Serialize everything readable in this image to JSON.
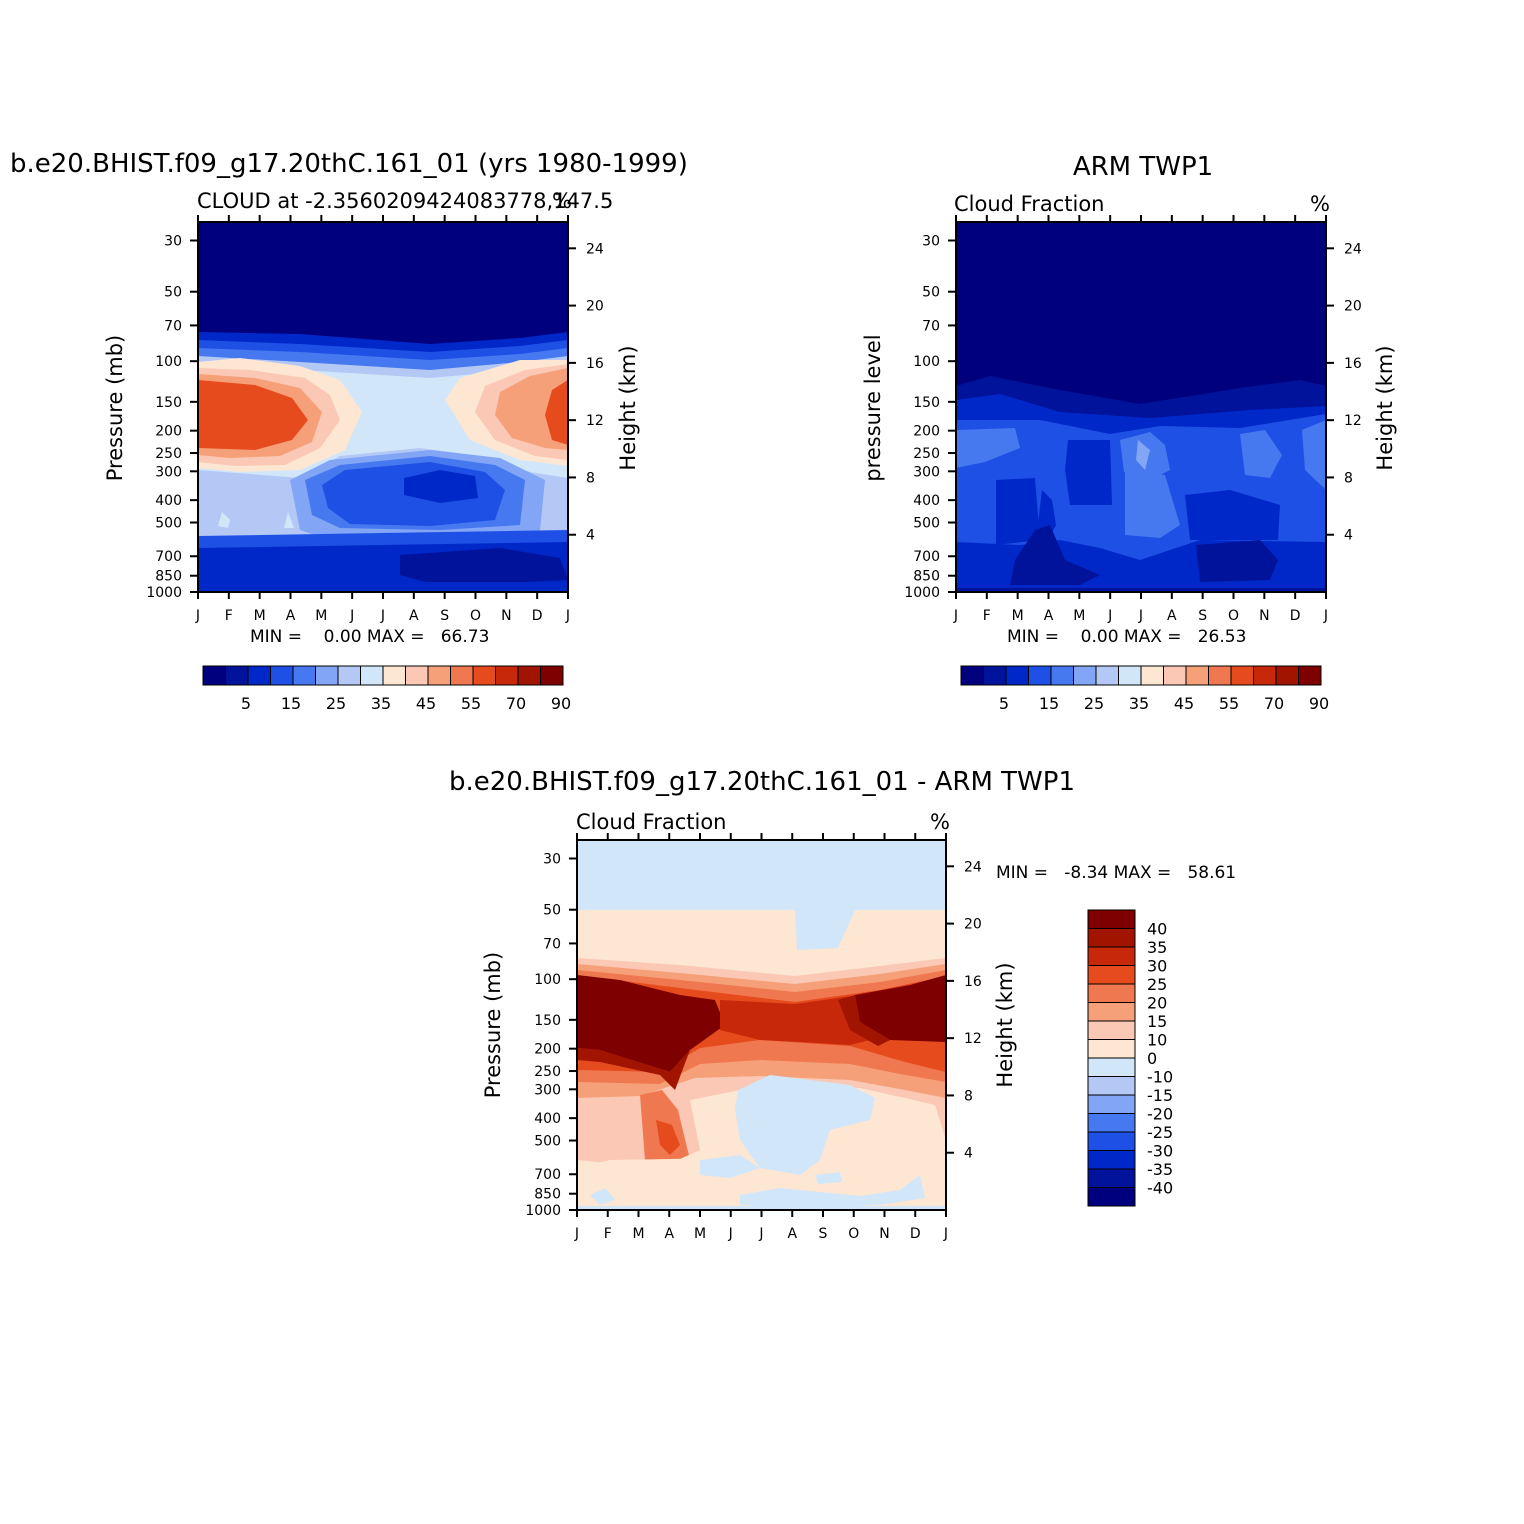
{
  "chart_data": [
    {
      "type": "heatmap",
      "title": "b.e20.BHIST.f09_g17.20thC.161_01 (yrs 1980-1999)",
      "subtitle_left": "CLOUD at -2.3560209424083778,147.5",
      "subtitle_right": "%",
      "ylabel": "Pressure (mb)",
      "ylabel_right": "Height (km)",
      "x_ticks": [
        "J",
        "F",
        "M",
        "A",
        "M",
        "J",
        "J",
        "A",
        "S",
        "O",
        "N",
        "D",
        "J"
      ],
      "y_ticks": [
        "30",
        "50",
        "70",
        "100",
        "150",
        "200",
        "250",
        "300",
        "400",
        "500",
        "700",
        "850",
        "1000"
      ],
      "y_ticks_right": [
        "24",
        "20",
        "16",
        "12",
        "8",
        "4"
      ],
      "stats": "MIN =    0.00 MAX =   66.73",
      "colorbar_labels": [
        "5",
        "15",
        "25",
        "35",
        "45",
        "55",
        "70",
        "90"
      ]
    },
    {
      "type": "heatmap",
      "title": "ARM TWP1",
      "subtitle_left": "Cloud Fraction",
      "subtitle_right": "%",
      "ylabel": "pressure level",
      "ylabel_right": "Height (km)",
      "x_ticks": [
        "J",
        "F",
        "M",
        "A",
        "M",
        "J",
        "J",
        "A",
        "S",
        "O",
        "N",
        "D",
        "J"
      ],
      "y_ticks": [
        "30",
        "50",
        "70",
        "100",
        "150",
        "200",
        "250",
        "300",
        "400",
        "500",
        "700",
        "850",
        "1000"
      ],
      "y_ticks_right": [
        "24",
        "20",
        "16",
        "12",
        "8",
        "4"
      ],
      "stats": "MIN =    0.00 MAX =   26.53",
      "colorbar_labels": [
        "5",
        "15",
        "25",
        "35",
        "45",
        "55",
        "70",
        "90"
      ]
    },
    {
      "type": "heatmap",
      "title": "b.e20.BHIST.f09_g17.20thC.161_01 - ARM TWP1",
      "subtitle_left": "Cloud Fraction",
      "subtitle_right": "%",
      "ylabel": "Pressure (mb)",
      "ylabel_right": "Height (km)",
      "x_ticks": [
        "J",
        "F",
        "M",
        "A",
        "M",
        "J",
        "J",
        "A",
        "S",
        "O",
        "N",
        "D",
        "J"
      ],
      "y_ticks": [
        "30",
        "50",
        "70",
        "100",
        "150",
        "200",
        "250",
        "300",
        "400",
        "500",
        "700",
        "850",
        "1000"
      ],
      "y_ticks_right": [
        "24",
        "20",
        "16",
        "12",
        "8",
        "4"
      ],
      "stats": "MIN =   -8.34 MAX =   58.61",
      "colorbar_labels": [
        "40",
        "35",
        "30",
        "25",
        "20",
        "15",
        "10",
        "0",
        "-10",
        "-15",
        "-20",
        "-25",
        "-30",
        "-35",
        "-40"
      ]
    }
  ],
  "colors": {
    "seq": [
      "#00007f",
      "#00139a",
      "#0028c8",
      "#1e50e6",
      "#4678f0",
      "#82a5f5",
      "#b4c8f5",
      "#d2e6fa",
      "#fde6d2",
      "#fac8b4",
      "#f5a078",
      "#f07850",
      "#e64b1e",
      "#c8280a",
      "#a01400",
      "#7f0000"
    ],
    "div": [
      "#7f0000",
      "#a01400",
      "#c8280a",
      "#e64b1e",
      "#f07850",
      "#f5a078",
      "#fac8b4",
      "#fde6d2",
      "#d2e6fa",
      "#b4c8f5",
      "#82a5f5",
      "#4678f0",
      "#1e50e6",
      "#0028c8",
      "#00139a",
      "#00007f"
    ]
  }
}
